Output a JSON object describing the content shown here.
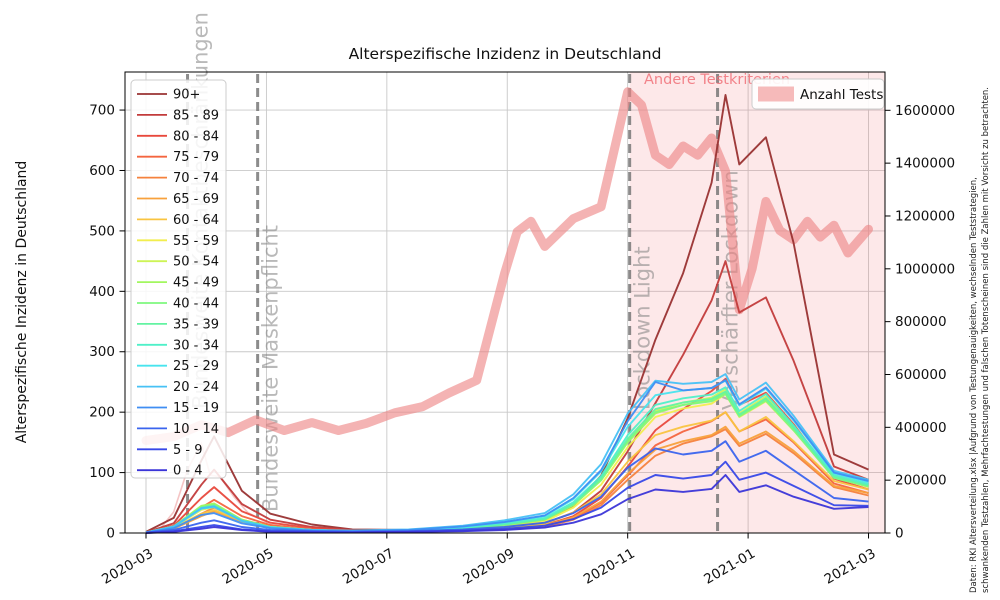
{
  "chart_data": {
    "type": "line",
    "title": "Alterspezifische Inzidenz in Deutschland",
    "ylabel_left": "Alterspezifische Inzidenz in Deutschland",
    "grid": true,
    "ylim_left": [
      0,
      763
    ],
    "ylim_right": [
      0,
      1745000
    ],
    "yticks_left": [
      0,
      100,
      200,
      300,
      400,
      500,
      600,
      700
    ],
    "yticks_right": [
      0,
      200000,
      400000,
      600000,
      800000,
      1000000,
      1200000,
      1400000,
      1600000
    ],
    "xticks": [
      "2020-03",
      "2020-05",
      "2020-07",
      "2020-09",
      "2020-11",
      "2021-01",
      "2021-03"
    ],
    "events": [
      {
        "date": "2020-03-22",
        "label": "Bundesweite Kontaktbeschränkungen"
      },
      {
        "date": "2020-04-27",
        "label": "Bundesweite Maskenpflicht"
      },
      {
        "date": "2020-11-02",
        "label": "Lockdown Light"
      },
      {
        "date": "2020-12-16",
        "label": "Verschärfter Lockdown"
      }
    ],
    "shaded_region": {
      "start": "2020-11-02",
      "end": "2021-03-09",
      "label": "Andere Testkriterien",
      "color": "#f07078"
    },
    "tests_series": {
      "name": "Anzahl Tests",
      "axis": "right",
      "color": "#ee8484",
      "dates": [
        "2020-03-01",
        "2020-03-15",
        "2020-03-29",
        "2020-04-12",
        "2020-04-26",
        "2020-05-10",
        "2020-05-24",
        "2020-06-07",
        "2020-06-21",
        "2020-07-05",
        "2020-07-19",
        "2020-08-02",
        "2020-08-16",
        "2020-08-30",
        "2020-09-06",
        "2020-09-13",
        "2020-09-20",
        "2020-10-04",
        "2020-10-18",
        "2020-11-01",
        "2020-11-08",
        "2020-11-15",
        "2020-11-22",
        "2020-11-29",
        "2020-12-06",
        "2020-12-13",
        "2020-12-20",
        "2020-12-27",
        "2021-01-03",
        "2021-01-10",
        "2021-01-17",
        "2021-01-24",
        "2021-01-31",
        "2021-02-07",
        "2021-02-14",
        "2021-02-21",
        "2021-03-01"
      ],
      "values": [
        350000,
        365000,
        410000,
        380000,
        428000,
        388000,
        418000,
        388000,
        415000,
        455000,
        478000,
        530000,
        578000,
        980000,
        1140000,
        1180000,
        1085000,
        1190000,
        1235000,
        1670000,
        1620000,
        1430000,
        1395000,
        1465000,
        1430000,
        1495000,
        1370000,
        845000,
        1000000,
        1255000,
        1145000,
        1110000,
        1180000,
        1120000,
        1165000,
        1060000,
        1150000
      ]
    },
    "ghost_line": {
      "name": "90+ (faint)",
      "color": "#eb8c8c",
      "dates": [
        "2020-03-01",
        "2020-03-08",
        "2020-03-15",
        "2020-03-22",
        "2020-03-29",
        "2020-04-03",
        "2020-04-08",
        "2020-04-15",
        "2020-04-22",
        "2020-05-03",
        "2020-05-17",
        "2020-06-07"
      ],
      "values": [
        0,
        6,
        35,
        105,
        148,
        96,
        93,
        60,
        34,
        14,
        6,
        2
      ]
    },
    "incidence_dates": [
      "2020-03-01",
      "2020-03-15",
      "2020-03-29",
      "2020-04-05",
      "2020-04-19",
      "2020-05-03",
      "2020-05-24",
      "2020-06-14",
      "2020-07-12",
      "2020-08-09",
      "2020-08-30",
      "2020-09-20",
      "2020-10-04",
      "2020-10-18",
      "2020-11-01",
      "2020-11-15",
      "2020-11-29",
      "2020-12-13",
      "2020-12-20",
      "2020-12-27",
      "2021-01-10",
      "2021-01-24",
      "2021-02-14",
      "2021-03-01"
    ],
    "series": [
      {
        "name": "90+",
        "color": "#993232",
        "values": [
          2,
          25,
          120,
          160,
          70,
          32,
          14,
          6,
          5,
          6,
          10,
          22,
          45,
          95,
          190,
          320,
          430,
          580,
          725,
          610,
          655,
          480,
          130,
          105
        ]
      },
      {
        "name": "85 - 89",
        "color": "#c23b3b",
        "values": [
          1,
          16,
          80,
          105,
          48,
          22,
          10,
          5,
          4,
          5,
          8,
          16,
          34,
          70,
          135,
          215,
          295,
          385,
          450,
          365,
          390,
          285,
          110,
          88
        ]
      },
      {
        "name": "80 - 84",
        "color": "#e8483c",
        "values": [
          1,
          12,
          58,
          76,
          36,
          17,
          8,
          4,
          3,
          4,
          7,
          13,
          28,
          58,
          110,
          170,
          205,
          235,
          255,
          212,
          232,
          180,
          90,
          72
        ]
      },
      {
        "name": "75 - 79",
        "color": "#f4653f",
        "values": [
          1,
          9,
          42,
          55,
          28,
          13,
          6,
          3,
          3,
          4,
          6,
          11,
          24,
          50,
          95,
          145,
          168,
          185,
          200,
          168,
          188,
          150,
          82,
          66
        ]
      },
      {
        "name": "70 - 74",
        "color": "#f5823d",
        "values": [
          1,
          8,
          32,
          42,
          22,
          11,
          5,
          3,
          2,
          4,
          6,
          10,
          22,
          46,
          88,
          128,
          148,
          160,
          172,
          144,
          164,
          132,
          76,
          62
        ]
      },
      {
        "name": "65 - 69",
        "color": "#f8a13c",
        "values": [
          1,
          7,
          28,
          36,
          19,
          9,
          4,
          3,
          2,
          4,
          7,
          12,
          26,
          52,
          98,
          138,
          152,
          162,
          176,
          148,
          168,
          136,
          78,
          66
        ]
      },
      {
        "name": "60 - 64",
        "color": "#f9c440",
        "values": [
          1,
          8,
          32,
          38,
          20,
          9,
          5,
          3,
          3,
          5,
          9,
          15,
          34,
          64,
          118,
          162,
          176,
          186,
          200,
          168,
          192,
          152,
          86,
          72
        ]
      },
      {
        "name": "55 - 59",
        "color": "#f2ee4e",
        "values": [
          1,
          10,
          38,
          43,
          21,
          10,
          5,
          3,
          3,
          6,
          11,
          19,
          42,
          80,
          142,
          192,
          206,
          214,
          230,
          192,
          218,
          170,
          92,
          76
        ]
      },
      {
        "name": "50 - 54",
        "color": "#cdf456",
        "values": [
          1,
          11,
          44,
          47,
          22,
          10,
          5,
          3,
          4,
          7,
          13,
          22,
          46,
          88,
          152,
          202,
          216,
          224,
          238,
          198,
          226,
          176,
          94,
          78
        ]
      },
      {
        "name": "45 - 49",
        "color": "#a2f75f",
        "values": [
          1,
          11,
          45,
          49,
          22,
          10,
          5,
          3,
          4,
          7,
          13,
          22,
          46,
          87,
          150,
          198,
          212,
          220,
          233,
          195,
          221,
          172,
          92,
          77
        ]
      },
      {
        "name": "40 - 44",
        "color": "#7ef87e",
        "values": [
          1,
          10,
          43,
          47,
          21,
          10,
          5,
          3,
          4,
          8,
          14,
          23,
          47,
          88,
          152,
          200,
          212,
          218,
          230,
          193,
          219,
          170,
          91,
          77
        ]
      },
      {
        "name": "35 - 39",
        "color": "#63f3a2",
        "values": [
          1,
          10,
          42,
          45,
          21,
          10,
          5,
          3,
          4,
          8,
          14,
          23,
          48,
          90,
          156,
          205,
          216,
          222,
          234,
          196,
          223,
          174,
          93,
          79
        ]
      },
      {
        "name": "30 - 34",
        "color": "#4ff0c8",
        "values": [
          1,
          10,
          41,
          44,
          20,
          10,
          5,
          3,
          5,
          9,
          16,
          25,
          51,
          94,
          162,
          212,
          223,
          229,
          241,
          202,
          230,
          178,
          96,
          81
        ]
      },
      {
        "name": "25 - 29",
        "color": "#48e4ee",
        "values": [
          1,
          10,
          40,
          43,
          20,
          9,
          5,
          3,
          5,
          10,
          18,
          28,
          56,
          102,
          176,
          228,
          236,
          240,
          252,
          211,
          239,
          186,
          99,
          84
        ]
      },
      {
        "name": "20 - 24",
        "color": "#47c1f5",
        "values": [
          1,
          11,
          41,
          44,
          20,
          9,
          5,
          4,
          6,
          12,
          21,
          33,
          64,
          114,
          198,
          252,
          247,
          250,
          263,
          221,
          249,
          194,
          103,
          88
        ]
      },
      {
        "name": "15 - 19",
        "color": "#3f8ef3",
        "values": [
          1,
          8,
          30,
          33,
          16,
          8,
          4,
          3,
          5,
          11,
          18,
          29,
          58,
          104,
          185,
          250,
          236,
          240,
          253,
          213,
          241,
          188,
          100,
          86
        ]
      },
      {
        "name": "10 - 14",
        "color": "#3a64ee",
        "values": [
          1,
          5,
          17,
          21,
          10,
          5,
          3,
          2,
          3,
          6,
          10,
          17,
          33,
          60,
          108,
          140,
          130,
          136,
          152,
          118,
          136,
          104,
          58,
          52
        ]
      },
      {
        "name": "5 - 9",
        "color": "#3748e8",
        "values": [
          0,
          3,
          10,
          13,
          6,
          3,
          2,
          1,
          2,
          4,
          7,
          12,
          23,
          42,
          75,
          96,
          90,
          96,
          118,
          88,
          100,
          78,
          46,
          45
        ]
      },
      {
        "name": "0 - 4",
        "color": "#3b35d8",
        "values": [
          0,
          2,
          7,
          10,
          5,
          2,
          1,
          1,
          2,
          3,
          5,
          9,
          17,
          31,
          56,
          72,
          68,
          73,
          96,
          68,
          79,
          60,
          40,
          43
        ]
      }
    ],
    "note_lines": [
      "Daten: RKI Altersverteilung.xlsx |Aufgrund von Testungenauigkeiten, wechselnden Teststrategien,",
      "schwankenden Testzahlen, Mehrfachtestungen und falschen Totenscheinen sind die Zahlen mit Vorsicht zu betrachten."
    ]
  }
}
